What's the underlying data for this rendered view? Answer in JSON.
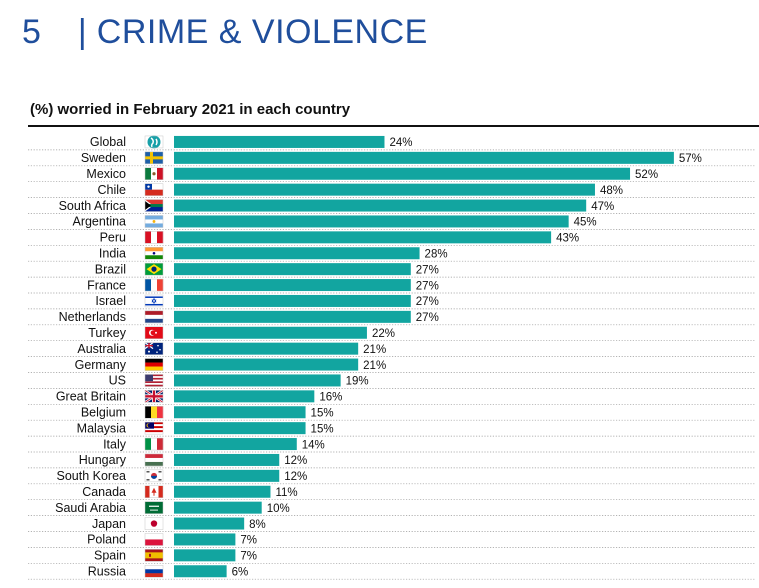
{
  "header": {
    "section_number": "5",
    "separator": "|",
    "title": "CRIME & VIOLENCE"
  },
  "chart_data": {
    "type": "bar",
    "orientation": "horizontal",
    "title": "(%) worried in February 2021 in each country",
    "bar_color": "#12a5a0",
    "xlim": [
      0,
      60
    ],
    "value_suffix": "%",
    "categories": [
      "Global",
      "Sweden",
      "Mexico",
      "Chile",
      "South Africa",
      "Argentina",
      "Peru",
      "India",
      "Brazil",
      "France",
      "Israel",
      "Netherlands",
      "Turkey",
      "Australia",
      "Germany",
      "US",
      "Great Britain",
      "Belgium",
      "Malaysia",
      "Italy",
      "Hungary",
      "South Korea",
      "Canada",
      "Saudi Arabia",
      "Japan",
      "Poland",
      "Spain",
      "Russia"
    ],
    "values": [
      24,
      57,
      52,
      48,
      47,
      45,
      43,
      28,
      27,
      27,
      27,
      27,
      22,
      21,
      21,
      19,
      16,
      15,
      15,
      14,
      12,
      12,
      11,
      10,
      8,
      7,
      7,
      6
    ],
    "icons": [
      "globe-icon",
      "flag-sweden-icon",
      "flag-mexico-icon",
      "flag-chile-icon",
      "flag-south-africa-icon",
      "flag-argentina-icon",
      "flag-peru-icon",
      "flag-india-icon",
      "flag-brazil-icon",
      "flag-france-icon",
      "flag-israel-icon",
      "flag-netherlands-icon",
      "flag-turkey-icon",
      "flag-australia-icon",
      "flag-germany-icon",
      "flag-us-icon",
      "flag-great-britain-icon",
      "flag-belgium-icon",
      "flag-malaysia-icon",
      "flag-italy-icon",
      "flag-hungary-icon",
      "flag-south-korea-icon",
      "flag-canada-icon",
      "flag-saudi-arabia-icon",
      "flag-japan-icon",
      "flag-poland-icon",
      "flag-spain-icon",
      "flag-russia-icon"
    ]
  }
}
